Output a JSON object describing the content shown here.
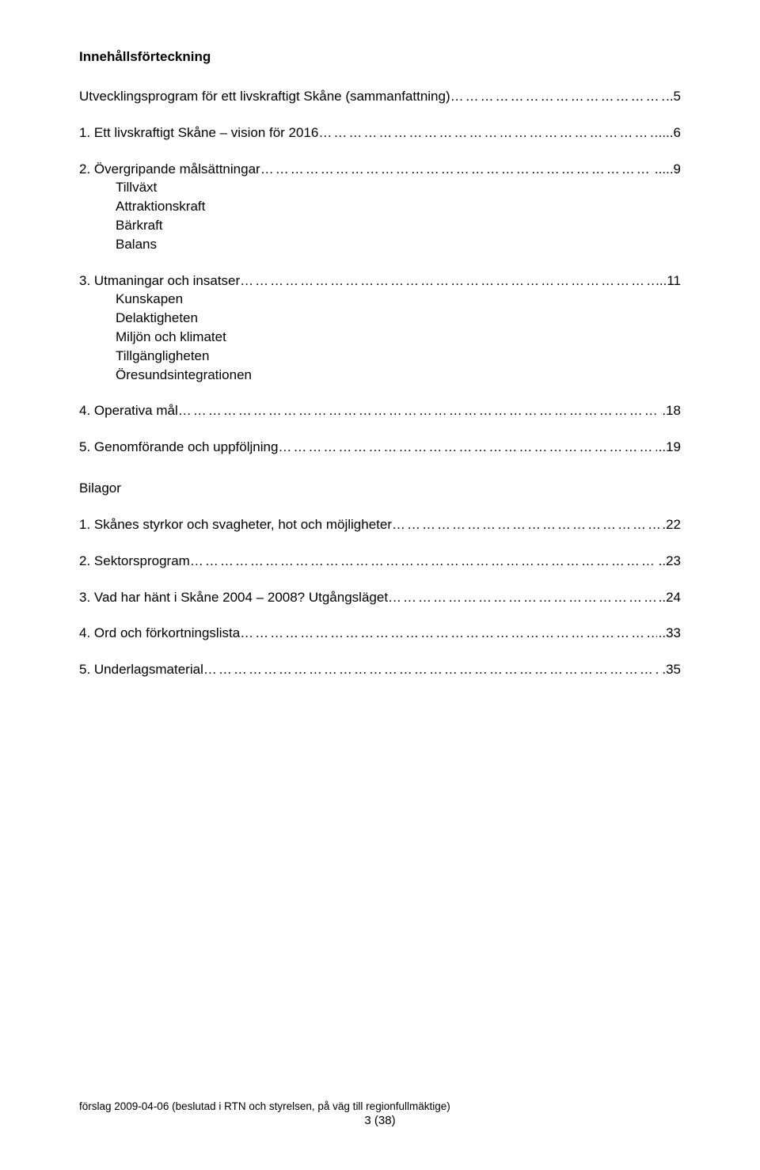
{
  "title": "Innehållsförteckning",
  "toc": {
    "summary": {
      "label": "Utvecklingsprogram för ett livskraftigt Skåne (sammanfattning)",
      "page": "..5"
    },
    "s1": {
      "label": "1. Ett livskraftigt Skåne – vision för 2016",
      "page": "....6"
    },
    "s2": {
      "label": "2. Övergripande målsättningar",
      "page": ".....9",
      "items": [
        "Tillväxt",
        "Attraktionskraft",
        "Bärkraft",
        "Balans"
      ]
    },
    "s3": {
      "label": "3. Utmaningar och insatser",
      "page": "...11",
      "items": [
        "Kunskapen",
        "Delaktigheten",
        "Miljön och klimatet",
        "Tillgängligheten",
        "Öresundsintegrationen"
      ]
    },
    "s4": {
      "label": "4. Operativa mål",
      "page": ".18"
    },
    "s5": {
      "label": "5. Genomförande och uppföljning",
      "page": "..19"
    }
  },
  "bilagor": {
    "title": "Bilagor",
    "b1": {
      "label": "1. Skånes styrkor och svagheter, hot och möjligheter",
      "page": ".22"
    },
    "b2": {
      "label": "2. Sektorsprogram",
      "page": "..23"
    },
    "b3": {
      "label": "3. Vad har hänt i Skåne 2004 – 2008? Utgångsläget",
      "page": "..24"
    },
    "b4": {
      "label": "4. Ord och förkortningslista",
      "page": "..33"
    },
    "b5": {
      "label": "5. Underlagsmaterial",
      "page": ".35"
    }
  },
  "footer": {
    "line": "förslag 2009-04-06 (beslutad i RTN och styrelsen, på väg till regionfullmäktige)",
    "pagenum": "3 (38)"
  },
  "dots_fill": "…………………………………………………………………………………………………………………………………………………………………………"
}
